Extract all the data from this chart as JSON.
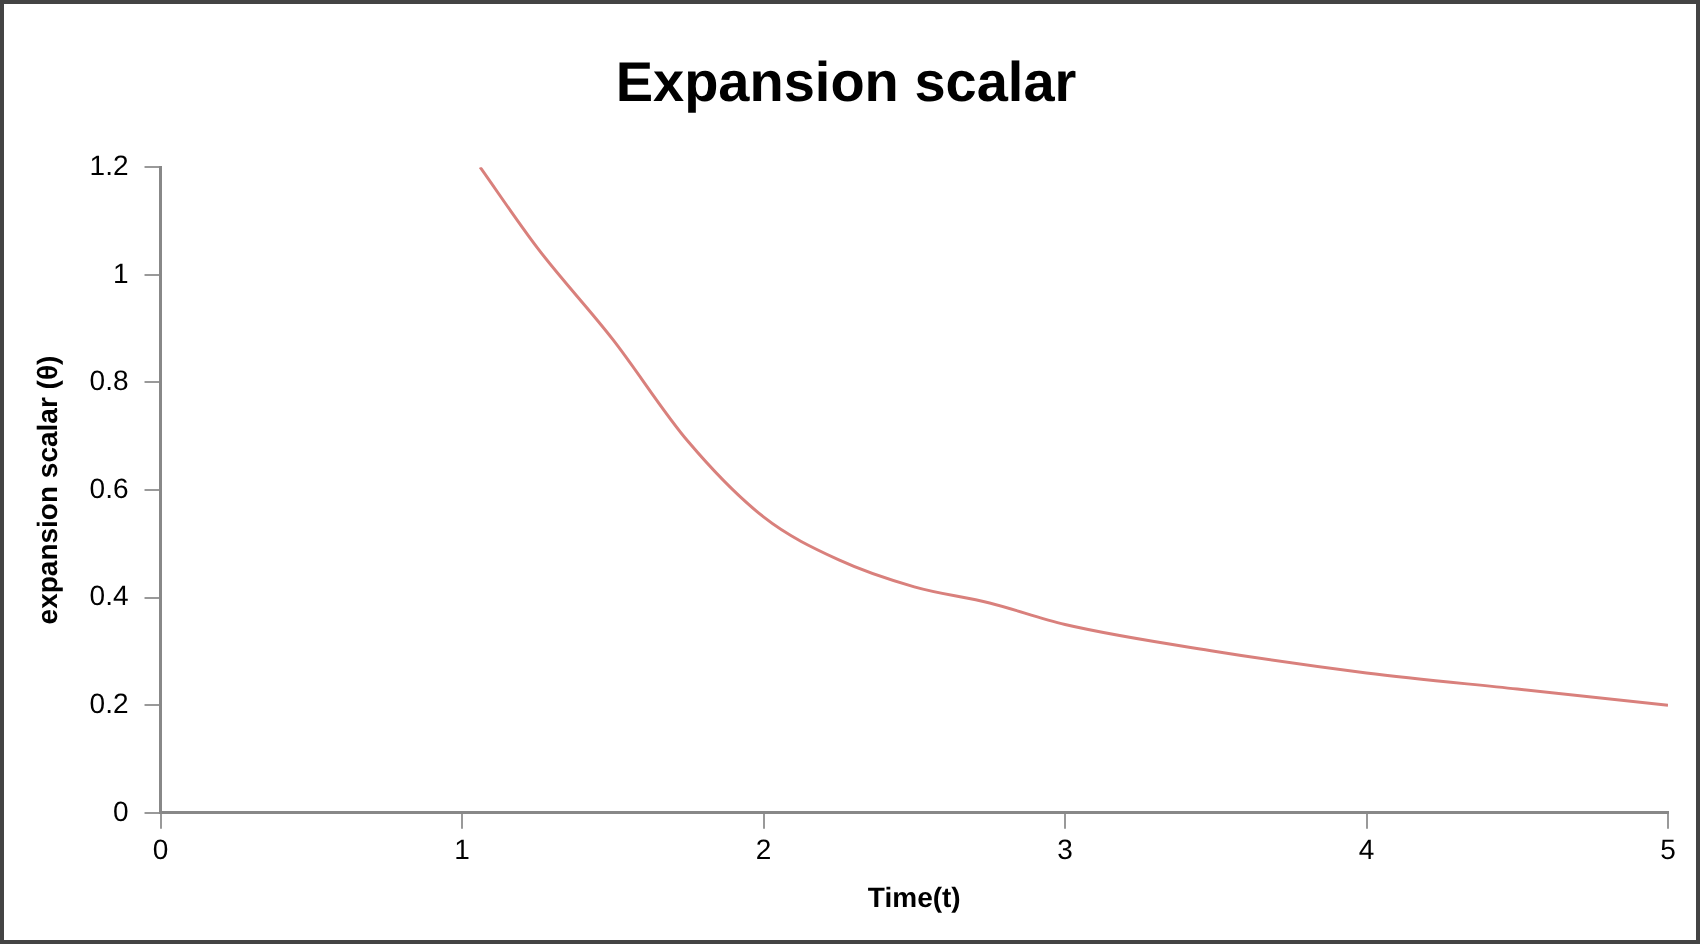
{
  "chart_data": {
    "type": "line",
    "title": "Expansion scalar",
    "xlabel": "Time(t)",
    "ylabel": "expansion scalar (θ)",
    "x": [
      1.06,
      1.25,
      1.5,
      1.75,
      2,
      2.25,
      2.5,
      2.75,
      3,
      3.5,
      4,
      4.5,
      5
    ],
    "series": [
      {
        "color": "#d9807c",
        "values": [
          1.2,
          1.05,
          0.88,
          0.69,
          0.55,
          0.47,
          0.42,
          0.39,
          0.35,
          0.3,
          0.26,
          0.23,
          0.2
        ]
      }
    ],
    "xlim": [
      0,
      5
    ],
    "xticks": [
      0,
      1,
      2,
      3,
      4,
      5
    ],
    "ylim": [
      0,
      1.2
    ],
    "yticks": [
      0,
      0.2,
      0.4,
      0.6,
      0.8,
      1,
      1.2
    ],
    "grid": false,
    "legend": false,
    "marker": "none",
    "line_style": "solid"
  }
}
